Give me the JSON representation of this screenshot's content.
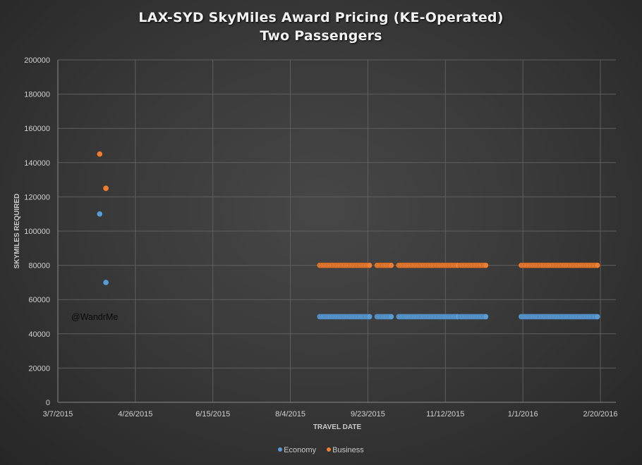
{
  "chart_data": {
    "type": "scatter",
    "title": "LAX-SYD SkyMiles Award Pricing (KE-Operated)",
    "subtitle": "Two Passengers",
    "xlabel": "TRAVEL DATE",
    "ylabel": "SKYMILES REQUIRED",
    "x_type": "date",
    "xlim": [
      "2015-03-07",
      "2016-03-01"
    ],
    "ylim": [
      0,
      200000
    ],
    "x_tick_step_days": 50,
    "x_tick_labels": [
      "3/7/2015",
      "4/26/2015",
      "6/15/2015",
      "8/4/2015",
      "9/23/2015",
      "11/12/2015",
      "1/1/2016",
      "2/20/2016"
    ],
    "y_tick_labels": [
      "0",
      "20000",
      "40000",
      "60000",
      "80000",
      "100000",
      "120000",
      "140000",
      "160000",
      "180000",
      "200000"
    ],
    "grid": true,
    "legend_position": "bottom",
    "annotation": "@WandrMe",
    "series": [
      {
        "name": "Economy",
        "color": "#5b9bd5",
        "points": [
          {
            "x": "2015-04-03",
            "y": 110000
          },
          {
            "x": "2015-04-07",
            "y": 70000
          }
        ],
        "ranges": [
          {
            "start": "2015-08-23",
            "end": "2015-09-24",
            "y": 50000
          },
          {
            "start": "2015-09-29",
            "end": "2015-10-08",
            "y": 50000
          },
          {
            "start": "2015-10-13",
            "end": "2015-11-20",
            "y": 50000
          },
          {
            "start": "2015-11-22",
            "end": "2015-12-08",
            "y": 50000
          },
          {
            "start": "2015-12-31",
            "end": "2016-02-18",
            "y": 50000
          }
        ]
      },
      {
        "name": "Business",
        "color": "#ed7d31",
        "points": [
          {
            "x": "2015-04-03",
            "y": 145000
          },
          {
            "x": "2015-04-07",
            "y": 125000
          }
        ],
        "ranges": [
          {
            "start": "2015-08-23",
            "end": "2015-09-24",
            "y": 80000
          },
          {
            "start": "2015-09-29",
            "end": "2015-10-08",
            "y": 80000
          },
          {
            "start": "2015-10-13",
            "end": "2015-11-20",
            "y": 80000
          },
          {
            "start": "2015-11-22",
            "end": "2015-12-08",
            "y": 80000
          },
          {
            "start": "2015-12-31",
            "end": "2016-02-18",
            "y": 80000
          }
        ]
      }
    ]
  }
}
